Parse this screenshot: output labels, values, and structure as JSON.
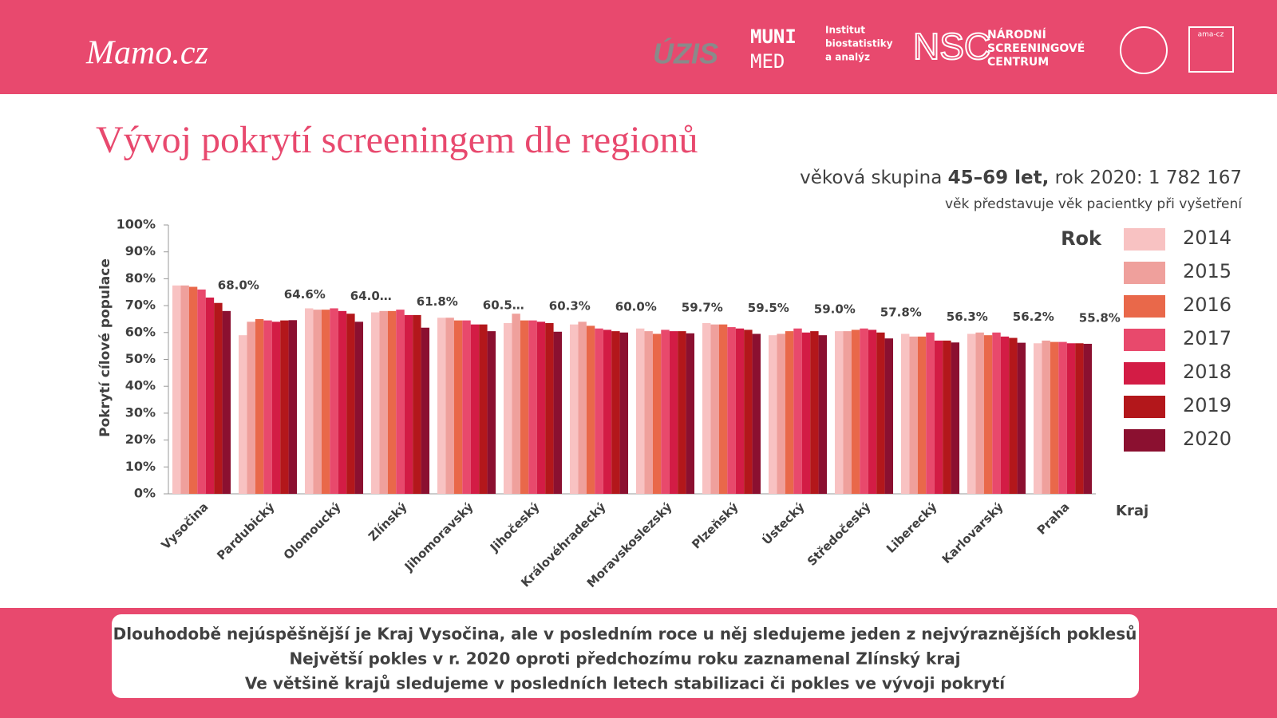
{
  "header": {
    "logo": "Mamo.cz",
    "partners": [
      "ÚZIS",
      "MUNI",
      "MED",
      "Institut",
      "biostatistiky",
      "a analýz",
      "NSC",
      "NÁRODNÍ",
      "SCREENINGOVÉ",
      "CENTRUM",
      "ama-cz"
    ]
  },
  "chart_data": {
    "type": "bar",
    "title": "Vývoj pokrytí screeningem dle regionů",
    "subtitle": [
      "věková skupina ",
      "45–69 let,",
      " rok 2020: 1 782 167"
    ],
    "note": "věk představuje věk pacientky při vyšetření",
    "y_label": "Pokrytí cílové populace",
    "x_label": "Kraj",
    "legend_title": "Rok",
    "legend": "right",
    "grid": false,
    "ylim": [
      0,
      100
    ],
    "yticks": [
      {
        "value": 0,
        "label": "0%"
      },
      {
        "value": 10,
        "label": "10%"
      },
      {
        "value": 20,
        "label": "20%"
      },
      {
        "value": 30,
        "label": "30%"
      },
      {
        "value": 40,
        "label": "40%"
      },
      {
        "value": 50,
        "label": "50%"
      },
      {
        "value": 60,
        "label": "60%"
      },
      {
        "value": 70,
        "label": "70%"
      },
      {
        "value": 80,
        "label": "80%"
      },
      {
        "value": 90,
        "label": "90%"
      },
      {
        "value": 100,
        "label": "100%"
      }
    ],
    "categories": [
      "Vysočina",
      "Pardubický",
      "Olomoucký",
      "Zlínský",
      "Jihomoravský",
      "Jihočeský",
      "Královéhradecký",
      "Moravskoslezský",
      "Plzeňský",
      "Ústecký",
      "Středočeský",
      "Liberecký",
      "Karlovarský",
      "Praha"
    ],
    "series": [
      {
        "name": "2014",
        "color": "#f8c2c2",
        "values": [
          77.5,
          59,
          69,
          67.5,
          65.5,
          63.5,
          63,
          61.5,
          63.5,
          59,
          60.5,
          59.5,
          59.5,
          56
        ]
      },
      {
        "name": "2015",
        "color": "#efa09c",
        "values": [
          77.5,
          64,
          68.5,
          68,
          65.5,
          67,
          64,
          60.5,
          63,
          59.5,
          60.5,
          58.5,
          60,
          57
        ]
      },
      {
        "name": "2016",
        "color": "#e9684a",
        "values": [
          77,
          65,
          68.5,
          68,
          64.5,
          64.5,
          62.5,
          59.5,
          63,
          60.5,
          61,
          58.5,
          59,
          56.5
        ]
      },
      {
        "name": "2017",
        "color": "#e8496c",
        "values": [
          76,
          64.5,
          69,
          68.5,
          64.5,
          64.5,
          61.5,
          61,
          62,
          61.5,
          61.5,
          60,
          60,
          56.5
        ]
      },
      {
        "name": "2018",
        "color": "#d31c45",
        "values": [
          73,
          64,
          68,
          66.5,
          63,
          64,
          61,
          60.5,
          61.5,
          60,
          61,
          57,
          58.5,
          56
        ]
      },
      {
        "name": "2019",
        "color": "#b3171b",
        "values": [
          71,
          64.5,
          67,
          66.5,
          63,
          63.5,
          60.5,
          60.5,
          61,
          60.5,
          60,
          57,
          58,
          56
        ]
      },
      {
        "name": "2020",
        "color": "#8b1030",
        "values": [
          68.0,
          64.6,
          64.0,
          61.8,
          60.5,
          60.3,
          60.0,
          59.7,
          59.5,
          59.0,
          57.8,
          56.3,
          56.2,
          55.8
        ],
        "value_labels": [
          "68.0%",
          "64.6%",
          "64.0…",
          "61.8%",
          "60.5…",
          "60.3%",
          "60.0%",
          "59.7%",
          "59.5%",
          "59.0%",
          "57.8%",
          "56.3%",
          "56.2%",
          "55.8%"
        ]
      }
    ]
  },
  "footer": [
    "Dlouhodobě nejúspěšnější je Kraj Vysočina, ale v posledním roce u něj sledujeme jeden z nejvýraznějších poklesů",
    "Největší pokles v r. 2020 oproti předchozímu roku zaznamenal Zlínský kraj",
    "Ve většině krajů sledujeme v posledních letech stabilizaci či pokles ve vývoji pokrytí"
  ]
}
